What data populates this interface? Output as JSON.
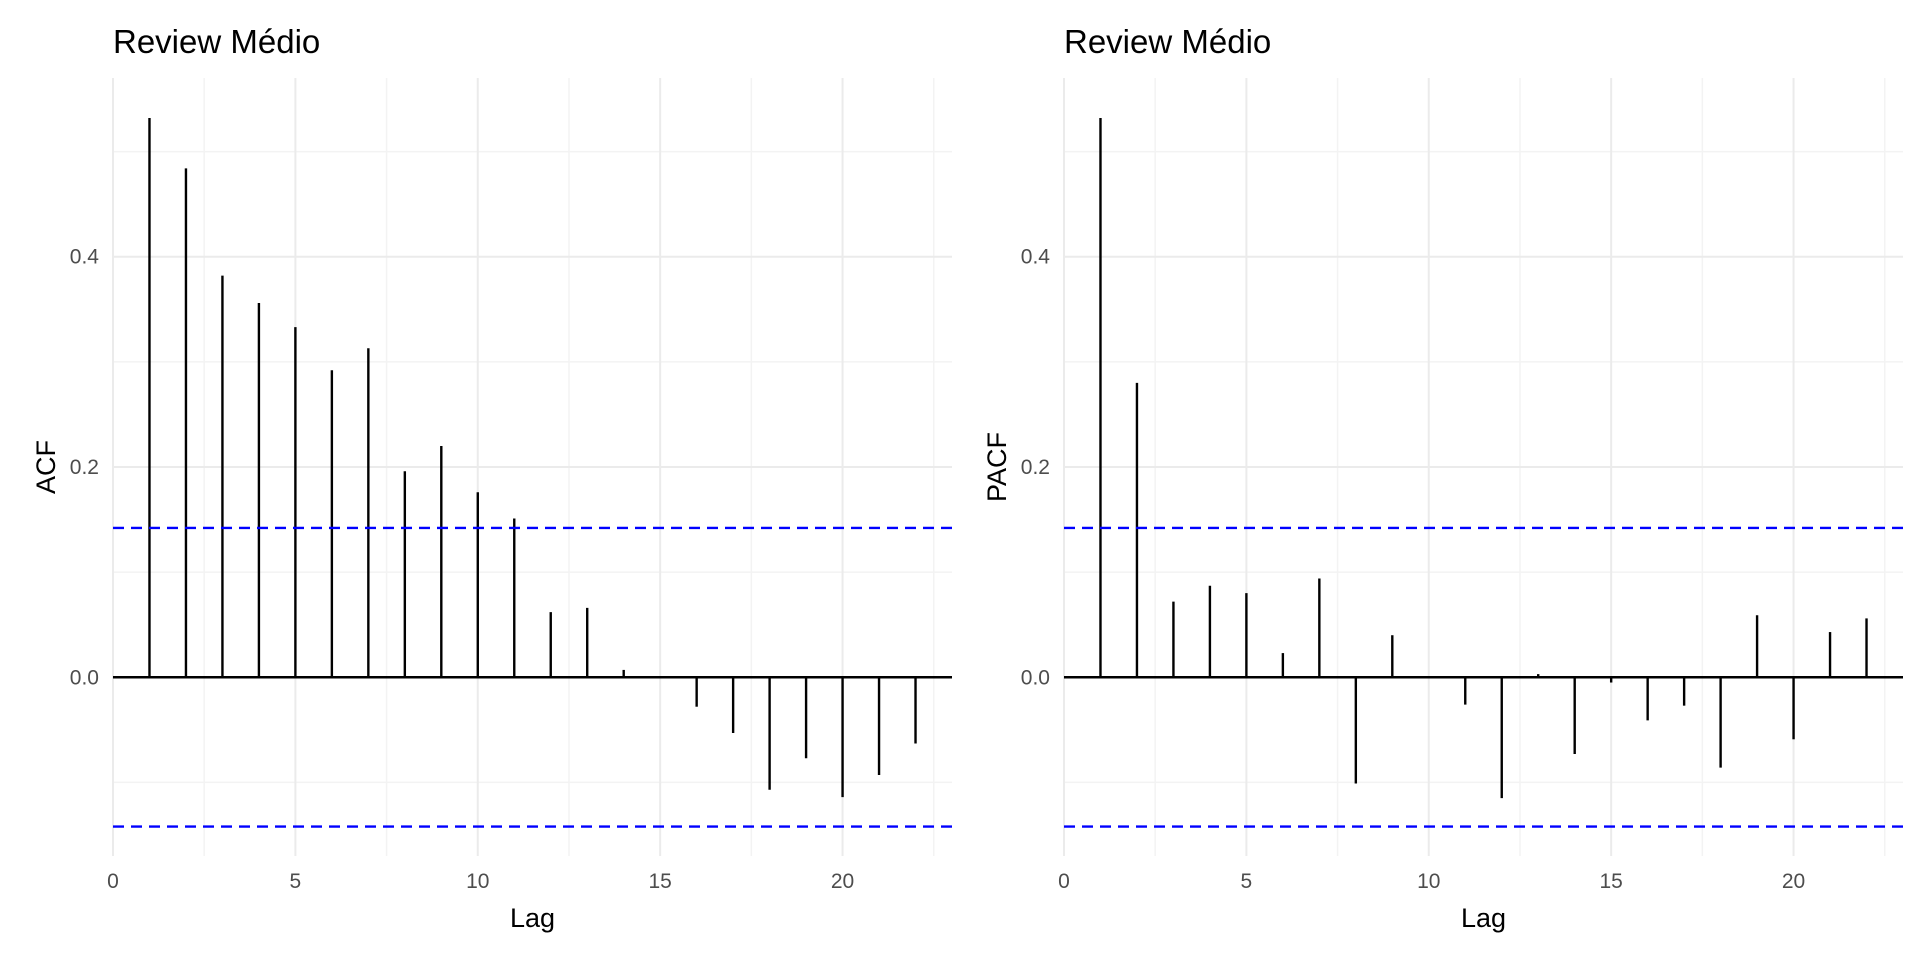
{
  "colors": {
    "ci": "#0000ff",
    "stem": "#000000"
  },
  "chart_data": [
    {
      "type": "bar",
      "title": "Review Médio",
      "xlabel": "Lag",
      "ylabel": "ACF",
      "xlim": [
        0,
        23
      ],
      "ylim": [
        -0.17,
        0.57
      ],
      "x_ticks": [
        0,
        5,
        10,
        15,
        20
      ],
      "y_ticks": [
        0.0,
        0.2,
        0.4
      ],
      "ci": [
        0.142,
        -0.142
      ],
      "lags": [
        1,
        2,
        3,
        4,
        5,
        6,
        7,
        8,
        9,
        10,
        11,
        12,
        13,
        14,
        15,
        16,
        17,
        18,
        19,
        20,
        21,
        22
      ],
      "values": [
        0.532,
        0.484,
        0.382,
        0.356,
        0.333,
        0.292,
        0.313,
        0.196,
        0.22,
        0.176,
        0.151,
        0.062,
        0.066,
        0.007,
        0.0,
        -0.028,
        -0.053,
        -0.107,
        -0.077,
        -0.114,
        -0.093,
        -0.063
      ],
      "grid": true
    },
    {
      "type": "bar",
      "title": "Review Médio",
      "xlabel": "Lag",
      "ylabel": "PACF",
      "xlim": [
        0,
        23
      ],
      "ylim": [
        -0.17,
        0.57
      ],
      "x_ticks": [
        0,
        5,
        10,
        15,
        20
      ],
      "y_ticks": [
        0.0,
        0.2,
        0.4
      ],
      "ci": [
        0.142,
        -0.142
      ],
      "lags": [
        1,
        2,
        3,
        4,
        5,
        6,
        7,
        8,
        9,
        10,
        11,
        12,
        13,
        14,
        15,
        16,
        17,
        18,
        19,
        20,
        21,
        22
      ],
      "values": [
        0.532,
        0.28,
        0.072,
        0.087,
        0.08,
        0.023,
        0.094,
        -0.101,
        0.04,
        0.0,
        -0.026,
        -0.115,
        0.003,
        -0.073,
        -0.005,
        -0.041,
        -0.027,
        -0.086,
        0.059,
        -0.059,
        0.043,
        0.056
      ],
      "grid": true
    }
  ]
}
